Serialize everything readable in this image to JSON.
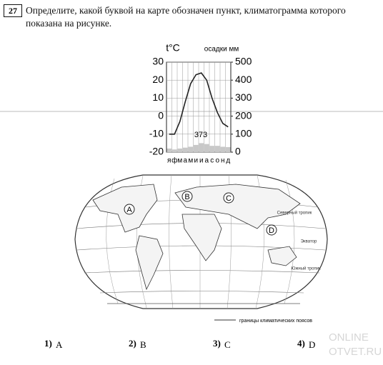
{
  "question": {
    "number": "27",
    "text": "Определите, какой буквой на карте обозначен пункт, климатограмма которого показана на рисунке."
  },
  "climatogram": {
    "type": "climatogram",
    "temperature_label": "t°C",
    "precipitation_label": "осадки мм",
    "categories": [
      "я",
      "ф",
      "м",
      "а",
      "м",
      "и",
      "и",
      "а",
      "с",
      "о",
      "н",
      "д"
    ],
    "temperature": [
      -10,
      -10,
      -3,
      8,
      18,
      23,
      24,
      20,
      10,
      2,
      -4,
      -6
    ],
    "precipitation": [
      20,
      15,
      20,
      25,
      30,
      40,
      50,
      45,
      35,
      35,
      30,
      28
    ],
    "annual_precipitation": 373,
    "ylim": [
      -20,
      30
    ],
    "yticks": [
      30,
      20,
      10,
      0,
      -10,
      -20
    ],
    "y2lim": [
      0,
      500
    ],
    "y2ticks": [
      500,
      400,
      300,
      200,
      100,
      0
    ],
    "grid": true,
    "line_color": "#222222",
    "bar_color": "#c8c8c8"
  },
  "map": {
    "points": [
      "A",
      "B",
      "C",
      "D"
    ],
    "labels": [
      "Северный тропик",
      "Экватор",
      "Южный тропик"
    ],
    "legend": "границы климатических поясов"
  },
  "options": [
    {
      "number": "1)",
      "letter": "A"
    },
    {
      "number": "2)",
      "letter": "B"
    },
    {
      "number": "3)",
      "letter": "C"
    },
    {
      "number": "4)",
      "letter": "D"
    }
  ],
  "watermark": [
    "ONLINE",
    "OTVET.RU"
  ]
}
